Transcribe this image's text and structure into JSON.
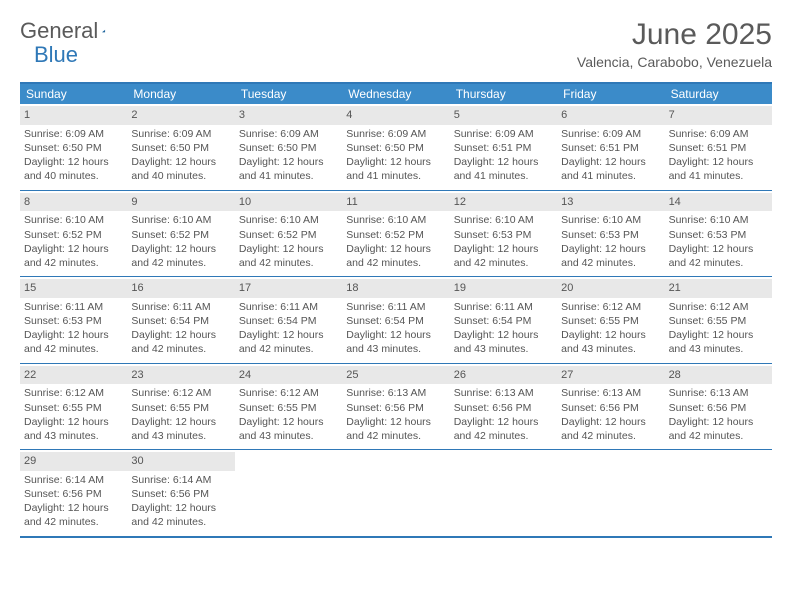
{
  "colors": {
    "header_bg": "#3b8bc9",
    "border": "#2f78b7",
    "daynum_bg": "#e8e8e8",
    "text": "#555555",
    "logo_blue": "#2f78b7"
  },
  "logo": {
    "word1": "General",
    "word2": "Blue"
  },
  "title": {
    "month": "June 2025",
    "location": "Valencia, Carabobo, Venezuela"
  },
  "weekdays": [
    "Sunday",
    "Monday",
    "Tuesday",
    "Wednesday",
    "Thursday",
    "Friday",
    "Saturday"
  ],
  "days": [
    {
      "n": "1",
      "sr": "Sunrise: 6:09 AM",
      "ss": "Sunset: 6:50 PM",
      "d1": "Daylight: 12 hours",
      "d2": "and 40 minutes."
    },
    {
      "n": "2",
      "sr": "Sunrise: 6:09 AM",
      "ss": "Sunset: 6:50 PM",
      "d1": "Daylight: 12 hours",
      "d2": "and 40 minutes."
    },
    {
      "n": "3",
      "sr": "Sunrise: 6:09 AM",
      "ss": "Sunset: 6:50 PM",
      "d1": "Daylight: 12 hours",
      "d2": "and 41 minutes."
    },
    {
      "n": "4",
      "sr": "Sunrise: 6:09 AM",
      "ss": "Sunset: 6:50 PM",
      "d1": "Daylight: 12 hours",
      "d2": "and 41 minutes."
    },
    {
      "n": "5",
      "sr": "Sunrise: 6:09 AM",
      "ss": "Sunset: 6:51 PM",
      "d1": "Daylight: 12 hours",
      "d2": "and 41 minutes."
    },
    {
      "n": "6",
      "sr": "Sunrise: 6:09 AM",
      "ss": "Sunset: 6:51 PM",
      "d1": "Daylight: 12 hours",
      "d2": "and 41 minutes."
    },
    {
      "n": "7",
      "sr": "Sunrise: 6:09 AM",
      "ss": "Sunset: 6:51 PM",
      "d1": "Daylight: 12 hours",
      "d2": "and 41 minutes."
    },
    {
      "n": "8",
      "sr": "Sunrise: 6:10 AM",
      "ss": "Sunset: 6:52 PM",
      "d1": "Daylight: 12 hours",
      "d2": "and 42 minutes."
    },
    {
      "n": "9",
      "sr": "Sunrise: 6:10 AM",
      "ss": "Sunset: 6:52 PM",
      "d1": "Daylight: 12 hours",
      "d2": "and 42 minutes."
    },
    {
      "n": "10",
      "sr": "Sunrise: 6:10 AM",
      "ss": "Sunset: 6:52 PM",
      "d1": "Daylight: 12 hours",
      "d2": "and 42 minutes."
    },
    {
      "n": "11",
      "sr": "Sunrise: 6:10 AM",
      "ss": "Sunset: 6:52 PM",
      "d1": "Daylight: 12 hours",
      "d2": "and 42 minutes."
    },
    {
      "n": "12",
      "sr": "Sunrise: 6:10 AM",
      "ss": "Sunset: 6:53 PM",
      "d1": "Daylight: 12 hours",
      "d2": "and 42 minutes."
    },
    {
      "n": "13",
      "sr": "Sunrise: 6:10 AM",
      "ss": "Sunset: 6:53 PM",
      "d1": "Daylight: 12 hours",
      "d2": "and 42 minutes."
    },
    {
      "n": "14",
      "sr": "Sunrise: 6:10 AM",
      "ss": "Sunset: 6:53 PM",
      "d1": "Daylight: 12 hours",
      "d2": "and 42 minutes."
    },
    {
      "n": "15",
      "sr": "Sunrise: 6:11 AM",
      "ss": "Sunset: 6:53 PM",
      "d1": "Daylight: 12 hours",
      "d2": "and 42 minutes."
    },
    {
      "n": "16",
      "sr": "Sunrise: 6:11 AM",
      "ss": "Sunset: 6:54 PM",
      "d1": "Daylight: 12 hours",
      "d2": "and 42 minutes."
    },
    {
      "n": "17",
      "sr": "Sunrise: 6:11 AM",
      "ss": "Sunset: 6:54 PM",
      "d1": "Daylight: 12 hours",
      "d2": "and 42 minutes."
    },
    {
      "n": "18",
      "sr": "Sunrise: 6:11 AM",
      "ss": "Sunset: 6:54 PM",
      "d1": "Daylight: 12 hours",
      "d2": "and 43 minutes."
    },
    {
      "n": "19",
      "sr": "Sunrise: 6:11 AM",
      "ss": "Sunset: 6:54 PM",
      "d1": "Daylight: 12 hours",
      "d2": "and 43 minutes."
    },
    {
      "n": "20",
      "sr": "Sunrise: 6:12 AM",
      "ss": "Sunset: 6:55 PM",
      "d1": "Daylight: 12 hours",
      "d2": "and 43 minutes."
    },
    {
      "n": "21",
      "sr": "Sunrise: 6:12 AM",
      "ss": "Sunset: 6:55 PM",
      "d1": "Daylight: 12 hours",
      "d2": "and 43 minutes."
    },
    {
      "n": "22",
      "sr": "Sunrise: 6:12 AM",
      "ss": "Sunset: 6:55 PM",
      "d1": "Daylight: 12 hours",
      "d2": "and 43 minutes."
    },
    {
      "n": "23",
      "sr": "Sunrise: 6:12 AM",
      "ss": "Sunset: 6:55 PM",
      "d1": "Daylight: 12 hours",
      "d2": "and 43 minutes."
    },
    {
      "n": "24",
      "sr": "Sunrise: 6:12 AM",
      "ss": "Sunset: 6:55 PM",
      "d1": "Daylight: 12 hours",
      "d2": "and 43 minutes."
    },
    {
      "n": "25",
      "sr": "Sunrise: 6:13 AM",
      "ss": "Sunset: 6:56 PM",
      "d1": "Daylight: 12 hours",
      "d2": "and 42 minutes."
    },
    {
      "n": "26",
      "sr": "Sunrise: 6:13 AM",
      "ss": "Sunset: 6:56 PM",
      "d1": "Daylight: 12 hours",
      "d2": "and 42 minutes."
    },
    {
      "n": "27",
      "sr": "Sunrise: 6:13 AM",
      "ss": "Sunset: 6:56 PM",
      "d1": "Daylight: 12 hours",
      "d2": "and 42 minutes."
    },
    {
      "n": "28",
      "sr": "Sunrise: 6:13 AM",
      "ss": "Sunset: 6:56 PM",
      "d1": "Daylight: 12 hours",
      "d2": "and 42 minutes."
    },
    {
      "n": "29",
      "sr": "Sunrise: 6:14 AM",
      "ss": "Sunset: 6:56 PM",
      "d1": "Daylight: 12 hours",
      "d2": "and 42 minutes."
    },
    {
      "n": "30",
      "sr": "Sunrise: 6:14 AM",
      "ss": "Sunset: 6:56 PM",
      "d1": "Daylight: 12 hours",
      "d2": "and 42 minutes."
    }
  ],
  "layout": {
    "start_weekday": 0,
    "total_cells": 35
  }
}
